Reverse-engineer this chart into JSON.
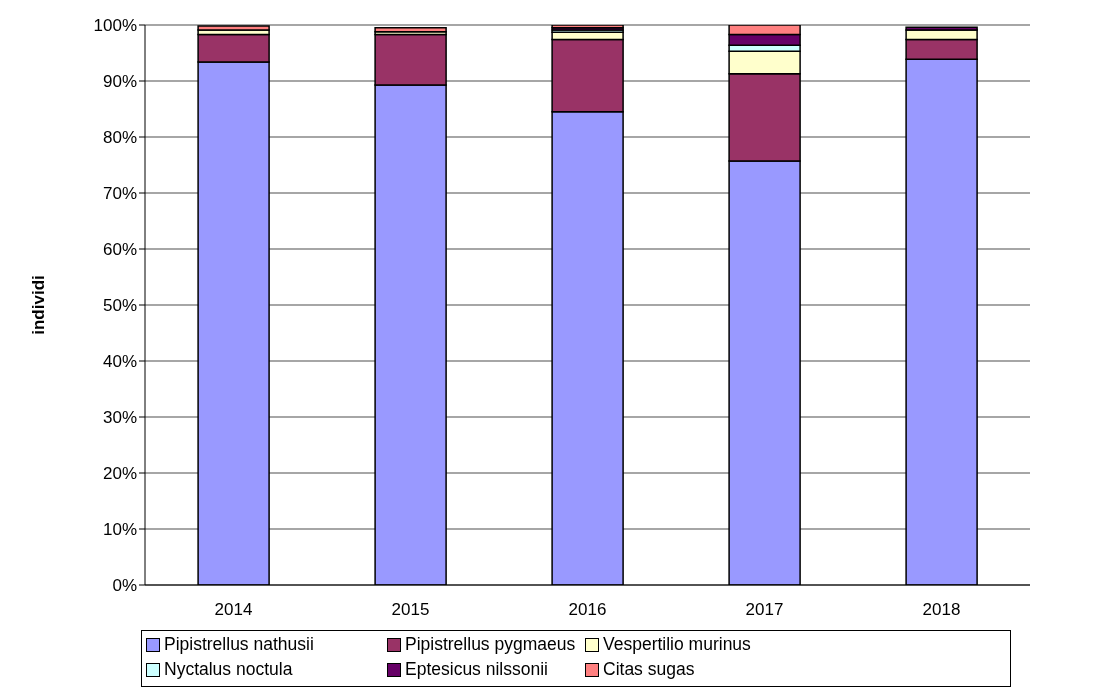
{
  "chart_data": {
    "type": "bar",
    "stacked": true,
    "ylabel": "individi",
    "categories": [
      "2014",
      "2015",
      "2016",
      "2017",
      "2018"
    ],
    "series": [
      {
        "name": "Pipistrellus nathusii",
        "color": "#9999ff",
        "values": [
          93.4,
          89.3,
          84.5,
          75.7,
          93.9
        ]
      },
      {
        "name": "Pipistrellus pygmaeus",
        "color": "#993366",
        "values": [
          4.9,
          9.0,
          12.9,
          15.6,
          3.5
        ]
      },
      {
        "name": "Vespertilio murinus",
        "color": "#ffffcc",
        "values": [
          0.8,
          0.5,
          1.3,
          4.0,
          1.7
        ]
      },
      {
        "name": "Nyctalus noctula",
        "color": "#ccffff",
        "values": [
          0,
          0,
          0.4,
          1.1,
          null
        ]
      },
      {
        "name": "Eptesicus nilssonii",
        "color": "#660066",
        "values": [
          null,
          null,
          0.4,
          1.9,
          0.5
        ]
      },
      {
        "name": "Citas sugas",
        "color": "#ff8080",
        "values": [
          0.7,
          0.7,
          0.5,
          1.7,
          null
        ]
      }
    ],
    "ylim": [
      0,
      100
    ],
    "yticks": [
      {
        "value": 0,
        "label": "0%"
      },
      {
        "value": 10,
        "label": "10%"
      },
      {
        "value": 20,
        "label": "20%"
      },
      {
        "value": 30,
        "label": "30%"
      },
      {
        "value": 40,
        "label": "40%"
      },
      {
        "value": 50,
        "label": "50%"
      },
      {
        "value": 60,
        "label": "60%"
      },
      {
        "value": 70,
        "label": "70%"
      },
      {
        "value": 80,
        "label": "80%"
      },
      {
        "value": 90,
        "label": "90%"
      },
      {
        "value": 100,
        "label": "100%"
      }
    ],
    "grid": "y",
    "legend": "bottom"
  }
}
